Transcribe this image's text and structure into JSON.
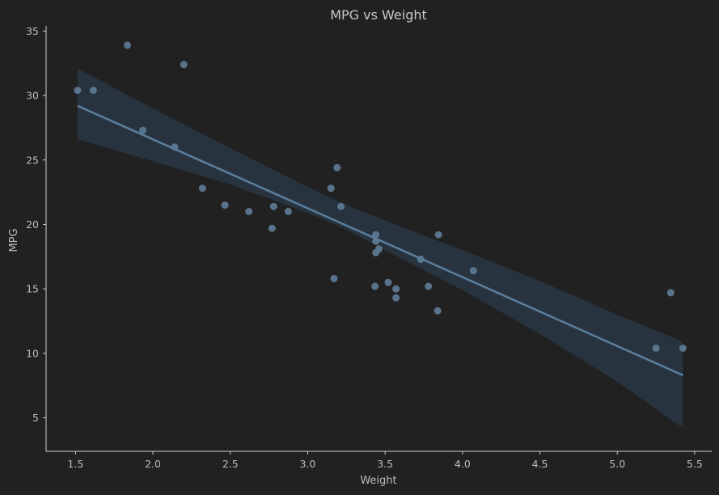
{
  "chart_data": {
    "type": "scatter",
    "title": "MPG vs Weight",
    "xlabel": "Weight",
    "ylabel": "MPG",
    "xlim": [
      1.31,
      5.61
    ],
    "ylim": [
      2.4,
      35.4
    ],
    "xticks": [
      1.5,
      2.0,
      2.5,
      3.0,
      3.5,
      4.0,
      4.5,
      5.0,
      5.5
    ],
    "xtick_labels": [
      "1.5",
      "2.0",
      "2.5",
      "3.0",
      "3.5",
      "4.0",
      "4.5",
      "5.0",
      "5.5"
    ],
    "yticks": [
      5,
      10,
      15,
      20,
      25,
      30,
      35
    ],
    "ytick_labels": [
      "5",
      "10",
      "15",
      "20",
      "25",
      "30",
      "35"
    ],
    "grid": false,
    "points": [
      {
        "x": 2.62,
        "y": 21.0
      },
      {
        "x": 2.875,
        "y": 21.0
      },
      {
        "x": 2.32,
        "y": 22.8
      },
      {
        "x": 3.215,
        "y": 21.4
      },
      {
        "x": 3.44,
        "y": 18.7
      },
      {
        "x": 3.46,
        "y": 18.1
      },
      {
        "x": 3.57,
        "y": 14.3
      },
      {
        "x": 3.19,
        "y": 24.4
      },
      {
        "x": 3.15,
        "y": 22.8
      },
      {
        "x": 3.44,
        "y": 19.2
      },
      {
        "x": 3.44,
        "y": 17.8
      },
      {
        "x": 4.07,
        "y": 16.4
      },
      {
        "x": 3.73,
        "y": 17.3
      },
      {
        "x": 3.78,
        "y": 15.2
      },
      {
        "x": 5.25,
        "y": 10.4
      },
      {
        "x": 5.424,
        "y": 10.4
      },
      {
        "x": 5.345,
        "y": 14.7
      },
      {
        "x": 2.2,
        "y": 32.4
      },
      {
        "x": 1.615,
        "y": 30.4
      },
      {
        "x": 1.835,
        "y": 33.9
      },
      {
        "x": 2.465,
        "y": 21.5
      },
      {
        "x": 3.52,
        "y": 15.5
      },
      {
        "x": 3.435,
        "y": 15.2
      },
      {
        "x": 3.84,
        "y": 13.3
      },
      {
        "x": 3.845,
        "y": 19.2
      },
      {
        "x": 1.935,
        "y": 27.3
      },
      {
        "x": 2.14,
        "y": 26.0
      },
      {
        "x": 1.513,
        "y": 30.4
      },
      {
        "x": 3.17,
        "y": 15.8
      },
      {
        "x": 2.77,
        "y": 19.7
      },
      {
        "x": 3.57,
        "y": 15.0
      },
      {
        "x": 2.78,
        "y": 21.4
      }
    ],
    "regression": {
      "x_range": [
        1.513,
        5.424
      ],
      "intercept": 37.285,
      "slope": -5.344,
      "ci_band": [
        {
          "x": 1.513,
          "lower": 26.6,
          "upper": 32.1
        },
        {
          "x": 2.0,
          "lower": 24.9,
          "upper": 29.0
        },
        {
          "x": 2.5,
          "lower": 23.1,
          "upper": 25.9
        },
        {
          "x": 3.0,
          "lower": 20.9,
          "upper": 22.9
        },
        {
          "x": 3.25,
          "lower": 19.6,
          "upper": 21.5
        },
        {
          "x": 3.5,
          "lower": 18.0,
          "upper": 20.3
        },
        {
          "x": 4.0,
          "lower": 14.9,
          "upper": 18.0
        },
        {
          "x": 4.5,
          "lower": 11.5,
          "upper": 15.6
        },
        {
          "x": 5.0,
          "lower": 7.8,
          "upper": 13.0
        },
        {
          "x": 5.424,
          "lower": 4.2,
          "upper": 10.9
        }
      ]
    },
    "colors": {
      "background": "#212121",
      "point": "#5c7891",
      "line": "#5a7d9a",
      "band": "#2a3a4a",
      "axis": "#cfcfcf",
      "text": "#bdbdbd"
    }
  }
}
